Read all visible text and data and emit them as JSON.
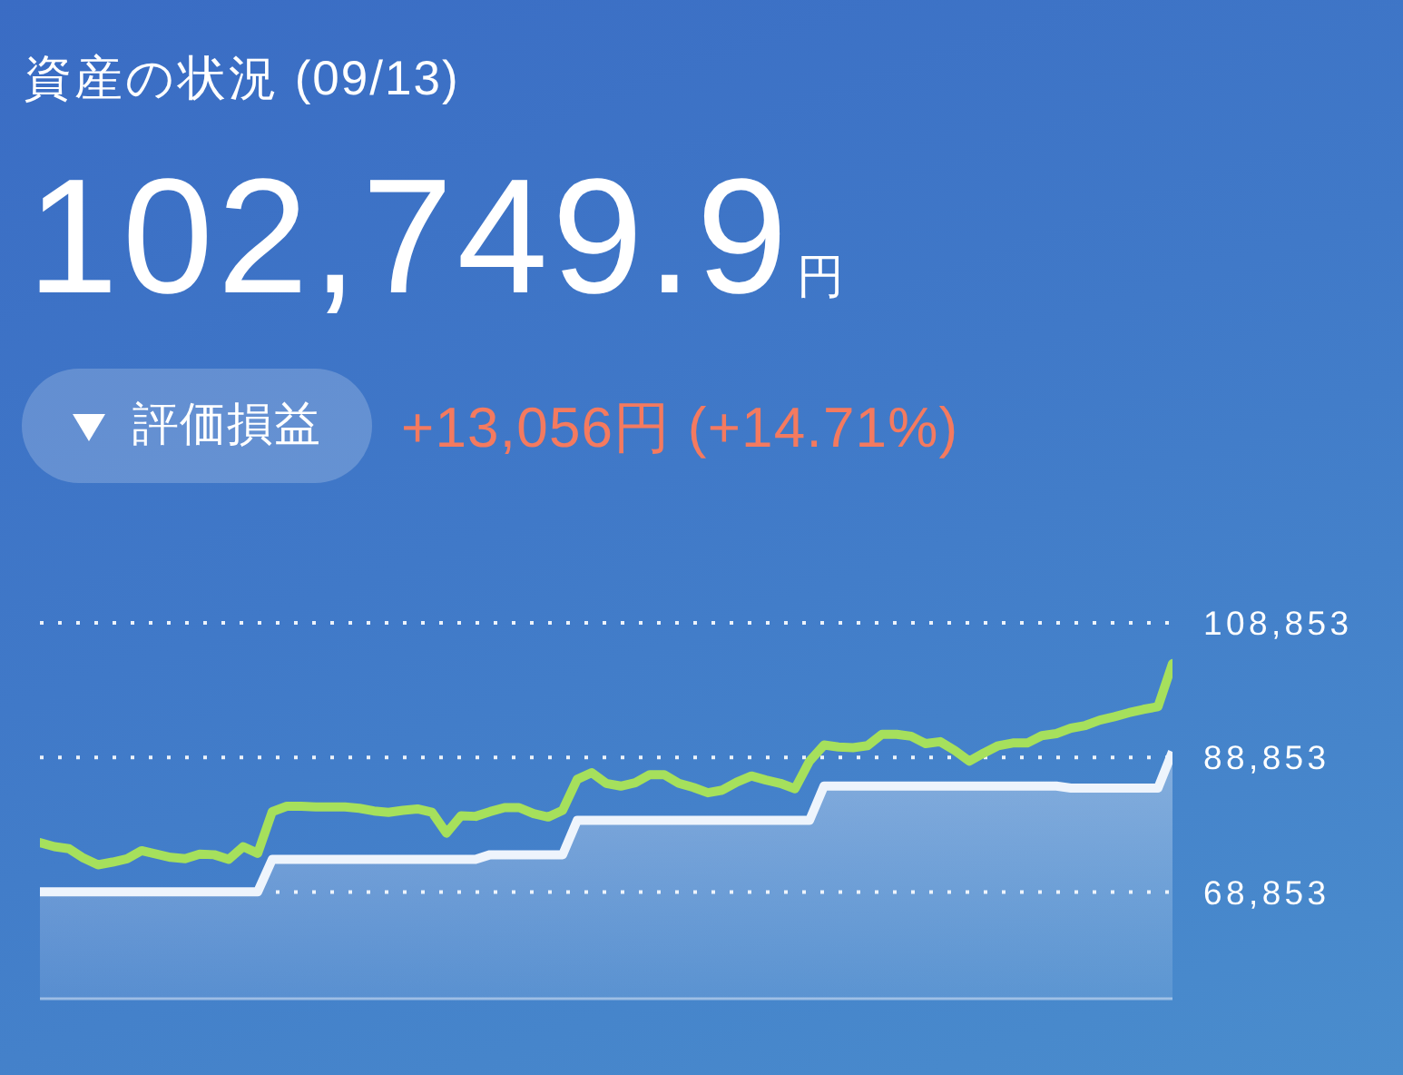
{
  "chart_data": {
    "type": "line",
    "title": "資産の状況 (09/13)",
    "subtitle": "102,749.9円",
    "annotations": [
      "評価損益",
      "+13,056円 (+14.71%)"
    ],
    "categories": [
      null,
      null,
      null,
      null,
      null,
      null,
      null,
      null,
      null,
      null,
      null,
      null,
      null,
      null,
      null,
      null,
      null,
      null,
      null,
      null,
      null,
      null,
      null,
      null,
      null,
      null,
      null,
      null,
      null,
      null,
      null,
      null,
      null,
      null,
      null,
      null,
      null,
      null,
      null,
      null,
      null,
      null,
      null,
      null,
      null,
      null,
      null,
      null,
      null,
      null,
      null,
      null,
      null,
      null,
      null,
      null,
      null,
      null,
      null,
      null,
      null,
      null,
      null,
      null,
      null,
      null,
      null,
      null,
      null,
      null,
      null,
      null,
      null,
      null,
      null,
      null,
      null,
      null,
      null
    ],
    "series": [
      {
        "type": "area",
        "color": "#eef4fc",
        "values": [
          68900,
          68900,
          68900,
          68900,
          68900,
          68900,
          68900,
          68900,
          68900,
          68900,
          68900,
          68900,
          68900,
          68900,
          68900,
          68900,
          73700,
          73700,
          73700,
          73700,
          73700,
          73700,
          73700,
          73700,
          73700,
          73700,
          73700,
          73700,
          73700,
          73700,
          73700,
          74400,
          74400,
          74400,
          74400,
          74400,
          74400,
          79500,
          79500,
          79500,
          79500,
          79500,
          79500,
          79500,
          79500,
          79500,
          79500,
          79500,
          79500,
          79500,
          79500,
          79500,
          79500,
          79500,
          84600,
          84600,
          84600,
          84600,
          84600,
          84600,
          84600,
          84600,
          84600,
          84600,
          84600,
          84600,
          84600,
          84600,
          84600,
          84600,
          84600,
          84300,
          84300,
          84300,
          84300,
          84300,
          84300,
          84300,
          89700
        ]
      },
      {
        "type": "line",
        "color": "#a6e05c",
        "values": [
          76200,
          75600,
          75300,
          73900,
          72900,
          73300,
          73800,
          75000,
          74500,
          74000,
          73800,
          74500,
          74400,
          73700,
          75600,
          74600,
          80800,
          81600,
          81600,
          81500,
          81500,
          81500,
          81300,
          80900,
          80700,
          81000,
          81200,
          80700,
          77600,
          80200,
          80100,
          80800,
          81400,
          81400,
          80500,
          80000,
          81000,
          85600,
          86600,
          85000,
          84600,
          85100,
          86300,
          86300,
          85000,
          84400,
          83600,
          84000,
          85200,
          86100,
          85500,
          85000,
          84200,
          88300,
          90700,
          90400,
          90300,
          90600,
          92300,
          92300,
          92000,
          90900,
          91200,
          89900,
          88300,
          89500,
          90600,
          91000,
          91000,
          92100,
          92400,
          93200,
          93600,
          94400,
          94900,
          95500,
          96000,
          96400,
          102800
        ]
      }
    ],
    "ylim": [
      53000,
      108853
    ],
    "yticks": [
      {
        "value": 68853,
        "label": "68,853"
      },
      {
        "value": 88853,
        "label": "88,853"
      },
      {
        "value": 108853,
        "label": "108,853"
      }
    ],
    "grid": "y",
    "tick_labels": "y"
  }
}
